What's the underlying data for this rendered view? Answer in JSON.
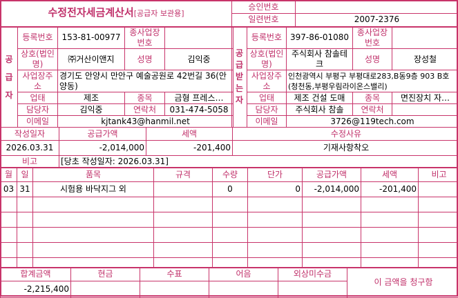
{
  "title": "수정전자세금계산서",
  "title_sub": "[공급자 보관용]",
  "approval": {
    "label": "승인번호",
    "value": ""
  },
  "serial": {
    "label": "일련번호",
    "value": "2007-2376"
  },
  "labels": {
    "reg_no": "등록번호",
    "sub_no": "종사업장번호",
    "name": "상호(법인명)",
    "ceo": "성명",
    "addr": "사업장주소",
    "biz_type": "업태",
    "item": "종목",
    "manager": "담당자",
    "contact": "연락처",
    "email": "이메일"
  },
  "supplier": {
    "section": "공급자",
    "reg_no": "153-81-00977",
    "sub_no": "",
    "name": "㈜거산이앤지",
    "ceo": "김익중",
    "addr": "경기도 안양시 만안구 예술공원로 42번길 36(안양동)",
    "biz_type": "제조",
    "item": "금형 프레스…",
    "manager": "김익중",
    "contact": "031-474-5058",
    "email": "kjtank43@hanmil.net"
  },
  "receiver": {
    "section": "공급받는자",
    "reg_no": "397-86-01080",
    "sub_no": "",
    "name": "주식회사 참솔테크",
    "ceo": "장성철",
    "addr": "인천광역시 부평구 부평대로283,B동9층 903 B호(청천동,부평우림라이온스밸리)",
    "biz_type": "제조 건설 도매",
    "item": "면진장치 자…",
    "manager": "주식회사 참솔",
    "contact": "",
    "email": "3726@119tech.com"
  },
  "summary": {
    "headers": [
      "작성일자",
      "공급가액",
      "세액",
      "수정사유"
    ],
    "values": [
      "2026.03.31",
      "-2,014,000",
      "-201,400",
      "기재사항착오"
    ]
  },
  "note": {
    "label": "비고",
    "value": "[당초 작성일자: 2026.03.31]"
  },
  "items": {
    "headers": [
      "월",
      "일",
      "품목",
      "규격",
      "수량",
      "단가",
      "공급가액",
      "세액",
      "비고"
    ],
    "rows": [
      [
        "03",
        "31",
        "시험용 바닥지그 외",
        "",
        "0",
        "0",
        "-2,014,000",
        "-201,400",
        ""
      ]
    ]
  },
  "totals": {
    "headers": [
      "합계금액",
      "현금",
      "수표",
      "어음",
      "외상미수금"
    ],
    "values": [
      "-2,215,400",
      "",
      "",
      "",
      ""
    ],
    "claim": "이 금액을 청구함"
  }
}
